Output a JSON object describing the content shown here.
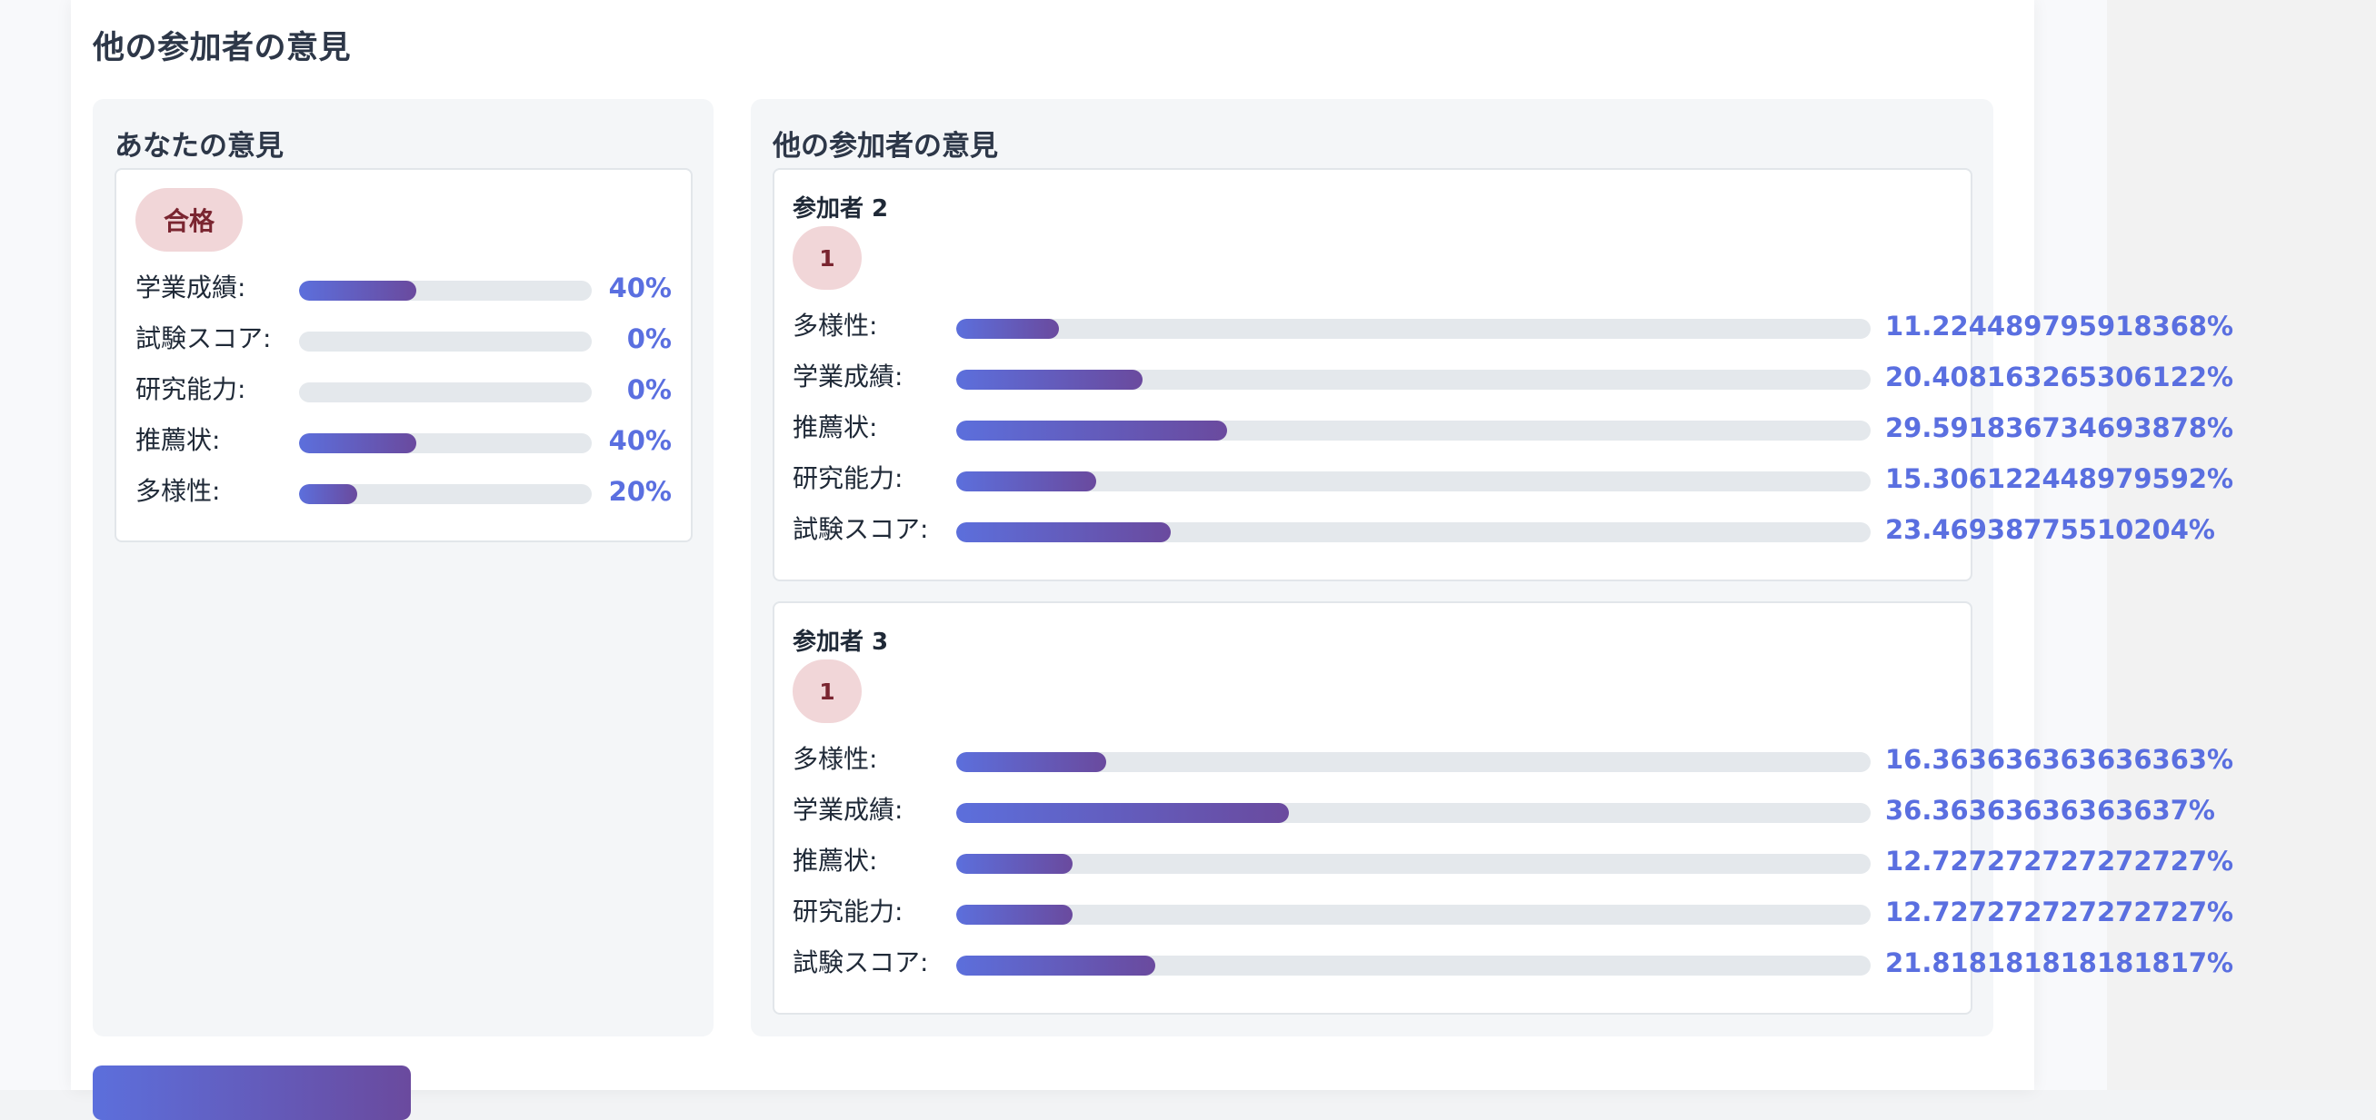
{
  "section_title": "他の参加者の意見",
  "your_opinion": {
    "title": "あなたの意見",
    "decision": "合格",
    "criteria": [
      {
        "label": "学業成績:",
        "percent": 40,
        "display": "40%"
      },
      {
        "label": "試験スコア:",
        "percent": 0,
        "display": "0%"
      },
      {
        "label": "研究能力:",
        "percent": 0,
        "display": "0%"
      },
      {
        "label": "推薦状:",
        "percent": 40,
        "display": "40%"
      },
      {
        "label": "多様性:",
        "percent": 20,
        "display": "20%"
      }
    ]
  },
  "others": {
    "title": "他の参加者の意見",
    "participants": [
      {
        "name": "参加者 2",
        "decision": "1",
        "criteria": [
          {
            "label": "多様性:",
            "percent": 11.224489795918368,
            "display": "11.224489795918368%"
          },
          {
            "label": "学業成績:",
            "percent": 20.408163265306122,
            "display": "20.408163265306122%"
          },
          {
            "label": "推薦状:",
            "percent": 29.591836734693878,
            "display": "29.591836734693878%"
          },
          {
            "label": "研究能力:",
            "percent": 15.306122448979592,
            "display": "15.306122448979592%"
          },
          {
            "label": "試験スコア:",
            "percent": 23.46938775510204,
            "display": "23.46938775510204%"
          }
        ]
      },
      {
        "name": "参加者 3",
        "decision": "1",
        "criteria": [
          {
            "label": "多様性:",
            "percent": 16.363636363636363,
            "display": "16.363636363636363%"
          },
          {
            "label": "学業成績:",
            "percent": 36.36363636363637,
            "display": "36.36363636363637%"
          },
          {
            "label": "推薦状:",
            "percent": 12.727272727272727,
            "display": "12.727272727272727%"
          },
          {
            "label": "研究能力:",
            "percent": 12.727272727272727,
            "display": "12.727272727272727%"
          },
          {
            "label": "試験スコア:",
            "percent": 21.818181818181817,
            "display": "21.818181818181817%"
          }
        ]
      }
    ]
  },
  "colors": {
    "accent": "#5a6fe0",
    "bar_gradient_start": "#5c6fdc",
    "bar_gradient_end": "#6a4a9e",
    "pill_bg": "#f1d6d8",
    "pill_text": "#7a2530"
  }
}
